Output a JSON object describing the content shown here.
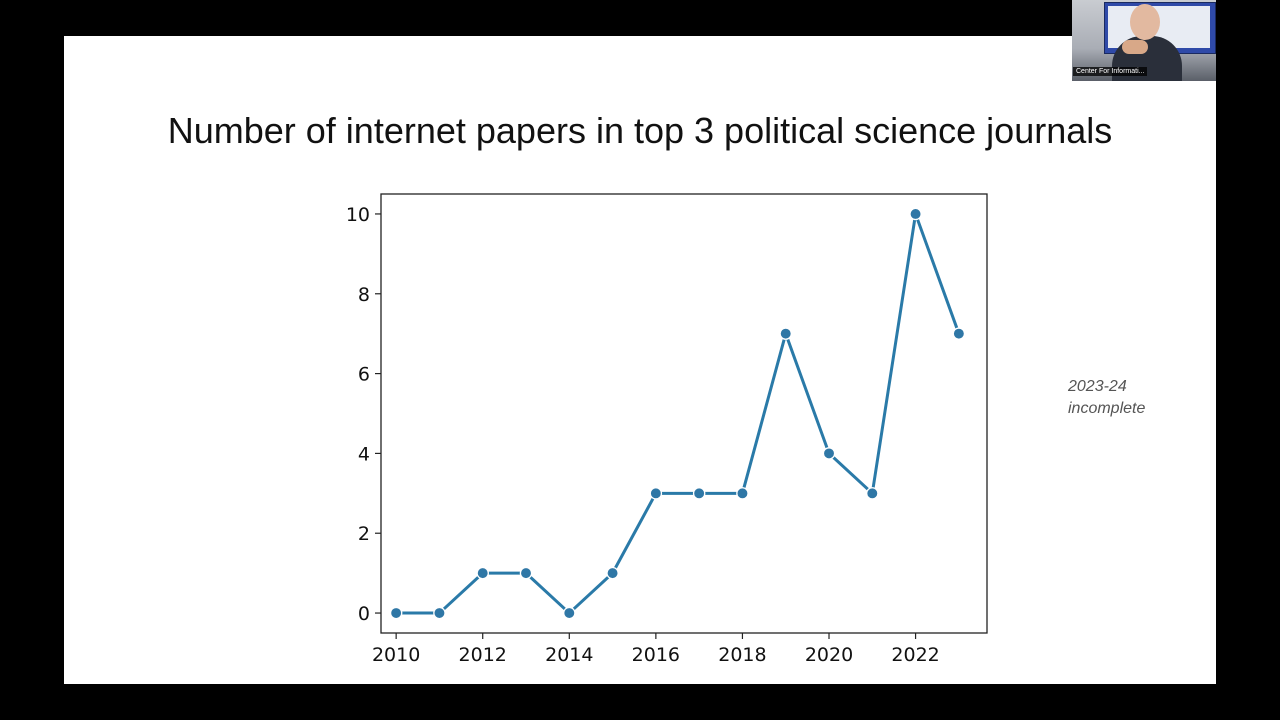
{
  "slide": {
    "title": "Number of internet papers in top 3 political science journals",
    "note_line1": "2023-24",
    "note_line2": "incomplete"
  },
  "webcam": {
    "label": "Center For Informati..."
  },
  "colors": {
    "line": "#2a7aa8",
    "marker": "#2f77a6",
    "marker_edge": "#ffffff"
  },
  "chart_data": {
    "type": "line",
    "title": "",
    "xlabel": "",
    "ylabel": "",
    "x": [
      2010,
      2011,
      2012,
      2013,
      2014,
      2015,
      2016,
      2017,
      2018,
      2019,
      2020,
      2021,
      2022,
      2023
    ],
    "y": [
      0,
      0,
      1,
      1,
      0,
      1,
      3,
      3,
      3,
      7,
      4,
      3,
      10,
      7
    ],
    "xlim": [
      2009.65,
      2023.65
    ],
    "ylim": [
      -0.5,
      10.5
    ],
    "xticks": [
      2010,
      2012,
      2014,
      2016,
      2018,
      2020,
      2022
    ],
    "yticks": [
      0,
      2,
      4,
      6,
      8,
      10
    ],
    "markers": true,
    "grid": false,
    "legend": "none"
  }
}
